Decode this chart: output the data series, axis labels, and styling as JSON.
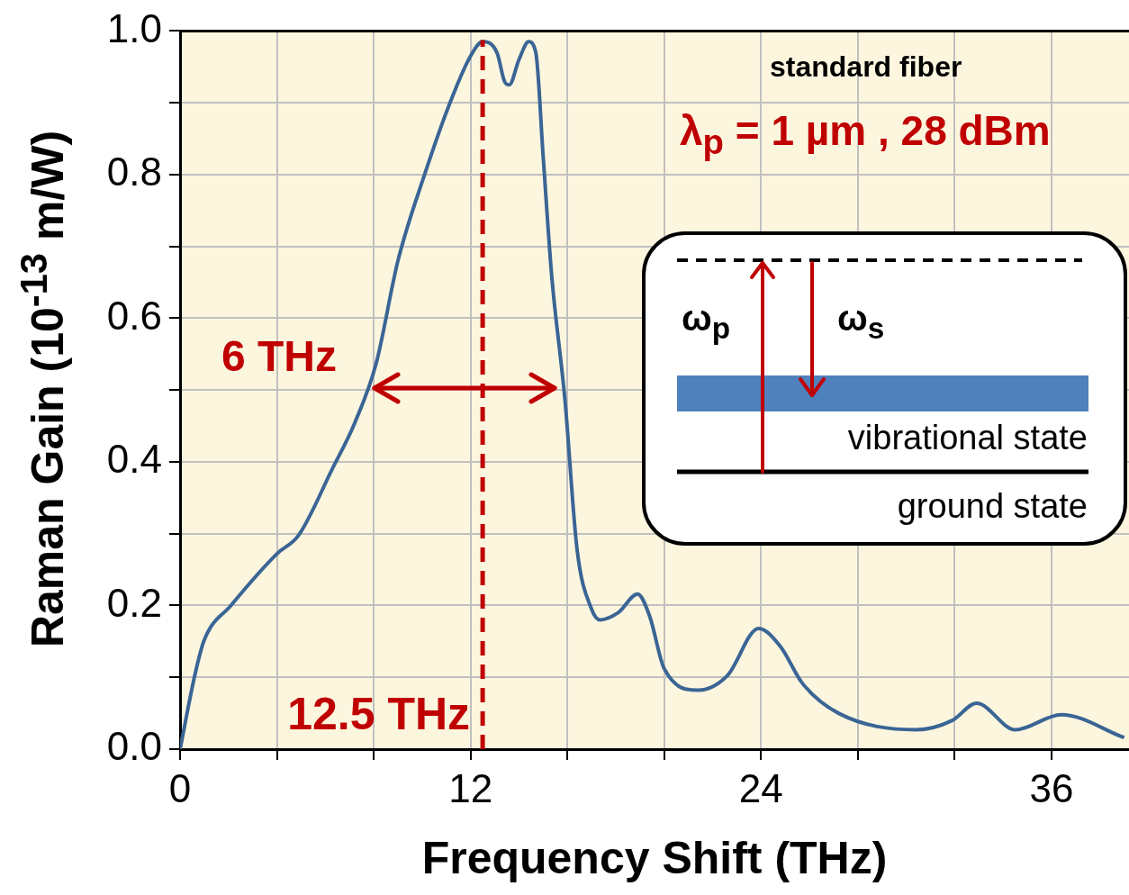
{
  "chart_data": {
    "type": "line",
    "xlabel": "Frequency Shift (THz)",
    "ylabel": "Raman Gain (10$^{-13}$ m/W)",
    "xlim": [
      0,
      39.2
    ],
    "ylim": [
      0,
      1
    ],
    "xticks": [
      0,
      {
        "value": 4,
        "label": null
      },
      {
        "value": 8,
        "label": null
      },
      12,
      {
        "value": 16,
        "label": null
      },
      {
        "value": 20,
        "label": null
      },
      24,
      {
        "value": 28,
        "label": null
      },
      {
        "value": 32,
        "label": null
      },
      36
    ],
    "yticks": [
      {
        "value": 0,
        "label": "0.0"
      },
      {
        "value": 0.1,
        "label": null
      },
      0.2,
      {
        "value": 0.3,
        "label": null
      },
      0.4,
      {
        "value": 0.5,
        "label": null
      },
      0.6,
      {
        "value": 0.7,
        "label": null
      },
      0.8,
      {
        "value": 0.9,
        "label": null
      },
      {
        "value": 1,
        "label": "1.0"
      }
    ],
    "grid": true,
    "series": [
      {
        "color": "#3a6595",
        "x": [
          0,
          0.63,
          1.0,
          2.1,
          4.0,
          4.9,
          6.3,
          7.2,
          8.1,
          9.0,
          10.1,
          11.15,
          12.0,
          12.5,
          13.1,
          13.4,
          13.6,
          14.0,
          14.4,
          14.7,
          15.0,
          15.35,
          15.9,
          16.4,
          17.0,
          17.35,
          18.1,
          18.9,
          19.4,
          20.0,
          21.4,
          22.6,
          23.9,
          24.8,
          25.7,
          27.2,
          30.4,
          31.9,
          32.9,
          34.5,
          36.4,
          39.0
        ],
        "values": [
          0,
          0.106,
          0.152,
          0.2,
          0.272,
          0.298,
          0.391,
          0.453,
          0.537,
          0.68,
          0.8,
          0.9,
          0.965,
          0.985,
          0.969,
          0.93,
          0.925,
          0.96,
          0.985,
          0.969,
          0.825,
          0.66,
          0.486,
          0.278,
          0.195,
          0.18,
          0.19,
          0.216,
          0.185,
          0.112,
          0.082,
          0.102,
          0.168,
          0.143,
          0.092,
          0.05,
          0.027,
          0.04,
          0.064,
          0.027,
          0.048,
          0.016
        ]
      }
    ],
    "ref_lines": [
      {
        "axis": "x",
        "value": 12.5,
        "label": "12.5 THz",
        "color": "#c00000",
        "line_style": "dashed"
      }
    ],
    "annotations": [
      "standard fiber",
      "λ$_{p}$ = 1 µm , 28 dBm",
      "6 THz",
      "ω$_{p}$",
      "ω$_{s}$",
      "vibrational state",
      "ground state"
    ]
  }
}
